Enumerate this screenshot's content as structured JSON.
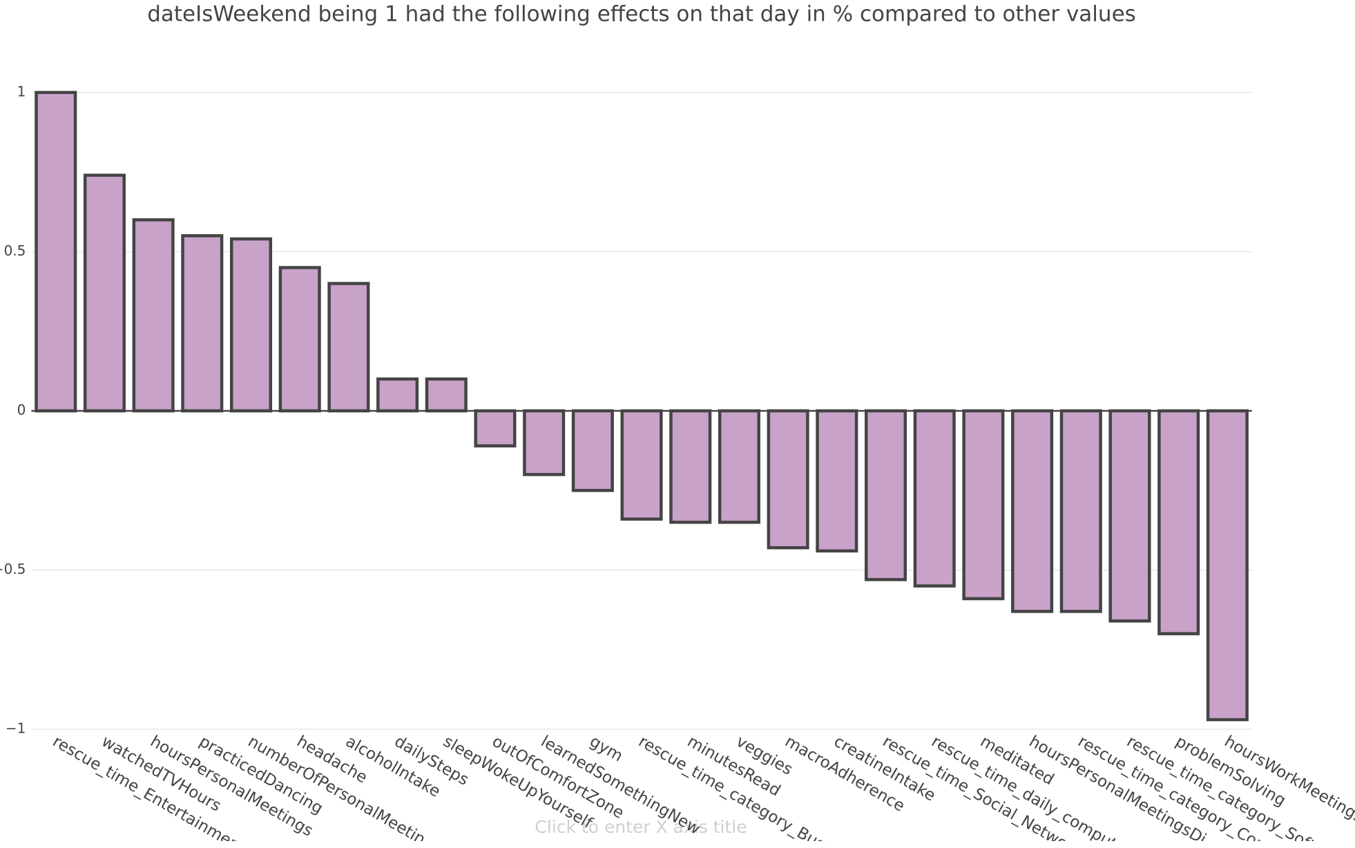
{
  "chart_data": {
    "type": "bar",
    "title": "dateIsWeekend being 1 had the following effects on that day in % compared to other values",
    "x_axis_placeholder": "Click to enter X axis title",
    "categories": [
      "rescue_time_Entertainmen",
      "watchedTVHours",
      "hoursPersonalMeetings",
      "practicedDancing",
      "numberOfPersonalMeetin",
      "headache",
      "alcoholIntake",
      "dailySteps",
      "sleepWokeUpYourself",
      "outOfComfortZone",
      "learnedSomethingNew",
      "gym",
      "rescue_time_category_Busi",
      "minutesRead",
      "veggies",
      "macroAdherence",
      "creatineIntake",
      "rescue_time_Social_Netwo",
      "rescue_time_daily_comput",
      "meditated",
      "hoursPersonalMeetingsDi",
      "rescue_time_category_Com",
      "rescue_time_category_Soft",
      "problemSolving",
      "hoursWorkMeetings"
    ],
    "values": [
      1.0,
      0.74,
      0.6,
      0.55,
      0.54,
      0.45,
      0.4,
      0.1,
      0.1,
      -0.11,
      -0.2,
      -0.25,
      -0.34,
      -0.35,
      -0.35,
      -0.43,
      -0.44,
      -0.53,
      -0.55,
      -0.59,
      -0.63,
      -0.63,
      -0.66,
      -0.7,
      -0.97
    ],
    "color": "#c8a2c8",
    "border_color": "#444444",
    "ylim": [
      -1,
      1
    ],
    "yticks": [
      {
        "value": -1,
        "label": "−1"
      },
      {
        "value": -0.5,
        "label": "−0.5"
      },
      0,
      0.5,
      1
    ],
    "grid": true
  }
}
